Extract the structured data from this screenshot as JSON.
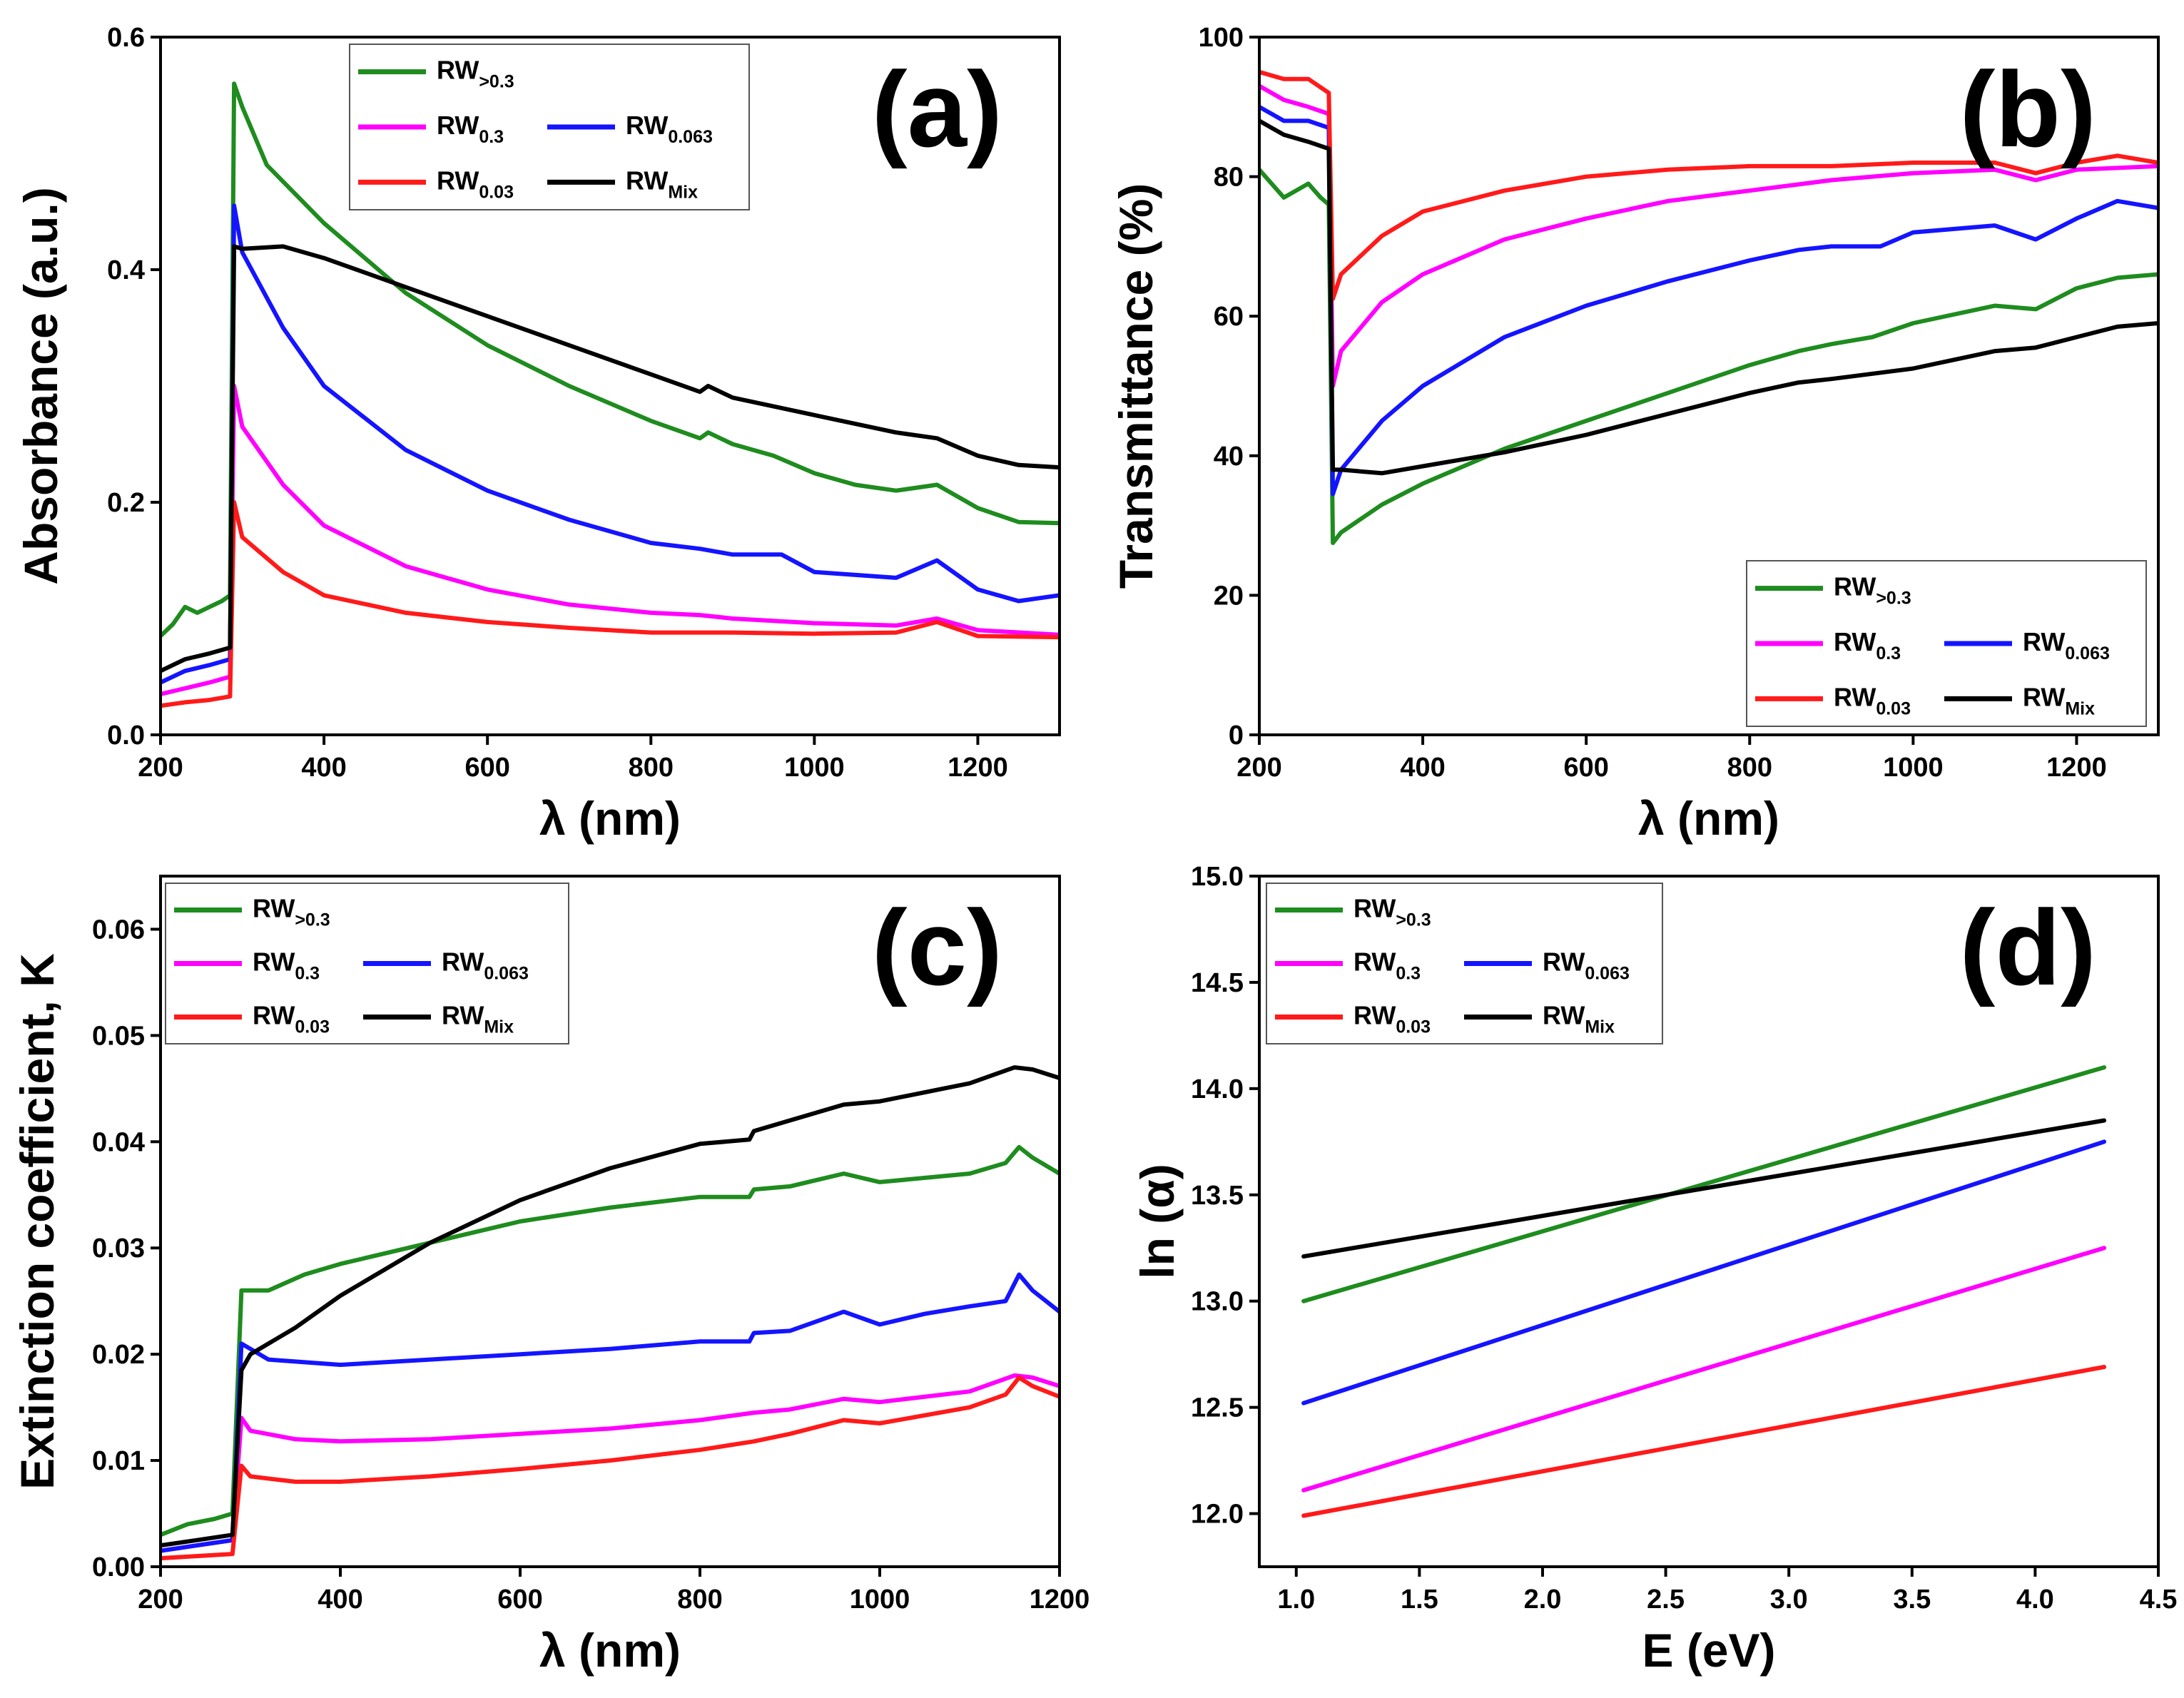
{
  "figure": {
    "panels_order": [
      "a",
      "b",
      "c",
      "d"
    ]
  },
  "chart_data": [
    {
      "id": "a",
      "type": "line",
      "panel_label": "(a)",
      "xlabel": "λ (nm)",
      "ylabel": "Absorbance (a.u.)",
      "xlim": [
        200,
        1300
      ],
      "ylim": [
        0,
        0.6
      ],
      "xticks": [
        200,
        400,
        600,
        800,
        1000,
        1200
      ],
      "yticks": [
        0.0,
        0.2,
        0.4,
        0.6
      ],
      "ytick_labels": [
        "0.0",
        "0.2",
        "0.4",
        "0.6"
      ],
      "legend": {
        "placement": "top-center",
        "rows": [
          [
            "RW>0.3"
          ],
          [
            "RW0.3",
            "RW0.063"
          ],
          [
            "RW0.03",
            "RWMix"
          ]
        ]
      },
      "series": [
        {
          "name": "RW>0.3",
          "base": "RW",
          "sub": ">0.3",
          "color": "#1e8c1e",
          "x": [
            200,
            215,
            230,
            245,
            260,
            275,
            285,
            290,
            300,
            330,
            400,
            500,
            600,
            700,
            800,
            860,
            870,
            900,
            950,
            1000,
            1050,
            1100,
            1150,
            1200,
            1250,
            1300
          ],
          "y": [
            0.085,
            0.095,
            0.11,
            0.105,
            0.11,
            0.115,
            0.12,
            0.56,
            0.54,
            0.49,
            0.44,
            0.38,
            0.335,
            0.3,
            0.27,
            0.255,
            0.26,
            0.25,
            0.24,
            0.225,
            0.215,
            0.21,
            0.215,
            0.195,
            0.183,
            0.182
          ]
        },
        {
          "name": "RW0.3",
          "base": "RW",
          "sub": "0.3",
          "color": "#ff00ff",
          "x": [
            200,
            230,
            260,
            285,
            290,
            300,
            350,
            400,
            500,
            600,
            700,
            800,
            860,
            900,
            1000,
            1100,
            1150,
            1200,
            1300
          ],
          "y": [
            0.035,
            0.04,
            0.045,
            0.05,
            0.3,
            0.265,
            0.215,
            0.18,
            0.145,
            0.125,
            0.112,
            0.105,
            0.103,
            0.1,
            0.096,
            0.094,
            0.1,
            0.09,
            0.086
          ]
        },
        {
          "name": "RW0.063",
          "base": "RW",
          "sub": "0.063",
          "color": "#1414ff",
          "x": [
            200,
            230,
            260,
            285,
            290,
            300,
            350,
            400,
            500,
            600,
            700,
            800,
            860,
            900,
            960,
            1000,
            1100,
            1150,
            1200,
            1250,
            1300
          ],
          "y": [
            0.045,
            0.055,
            0.06,
            0.065,
            0.455,
            0.415,
            0.35,
            0.3,
            0.245,
            0.21,
            0.185,
            0.165,
            0.16,
            0.155,
            0.155,
            0.14,
            0.135,
            0.15,
            0.125,
            0.115,
            0.12
          ]
        },
        {
          "name": "RW0.03",
          "base": "RW",
          "sub": "0.03",
          "color": "#ff1a1a",
          "x": [
            200,
            230,
            260,
            285,
            290,
            300,
            350,
            400,
            500,
            600,
            700,
            800,
            900,
            1000,
            1100,
            1150,
            1200,
            1300
          ],
          "y": [
            0.025,
            0.028,
            0.03,
            0.033,
            0.2,
            0.17,
            0.14,
            0.12,
            0.105,
            0.097,
            0.092,
            0.088,
            0.088,
            0.087,
            0.088,
            0.097,
            0.085,
            0.084
          ]
        },
        {
          "name": "RWMix",
          "base": "RW",
          "sub": "Mix",
          "color": "#000000",
          "x": [
            200,
            230,
            260,
            285,
            290,
            300,
            350,
            400,
            500,
            600,
            700,
            800,
            860,
            870,
            900,
            1000,
            1100,
            1150,
            1200,
            1250,
            1300
          ],
          "y": [
            0.055,
            0.065,
            0.07,
            0.075,
            0.42,
            0.418,
            0.42,
            0.41,
            0.385,
            0.36,
            0.335,
            0.31,
            0.295,
            0.3,
            0.29,
            0.275,
            0.26,
            0.255,
            0.24,
            0.232,
            0.23
          ]
        }
      ]
    },
    {
      "id": "b",
      "type": "line",
      "panel_label": "(b)",
      "xlabel": "λ (nm)",
      "ylabel": "Transmittance (%)",
      "xlim": [
        200,
        1300
      ],
      "ylim": [
        0,
        100
      ],
      "xticks": [
        200,
        400,
        600,
        800,
        1000,
        1200
      ],
      "yticks": [
        0,
        20,
        40,
        60,
        80,
        100
      ],
      "ytick_labels": [
        "0",
        "20",
        "40",
        "60",
        "80",
        "100"
      ],
      "legend": {
        "placement": "bottom-right",
        "rows": [
          [
            "RW>0.3"
          ],
          [
            "RW0.3",
            "RW0.063"
          ],
          [
            "RW0.03",
            "RWMix"
          ]
        ]
      },
      "series": [
        {
          "name": "RW>0.3",
          "base": "RW",
          "sub": ">0.3",
          "color": "#1e8c1e",
          "x": [
            200,
            215,
            230,
            245,
            260,
            275,
            285,
            290,
            300,
            350,
            400,
            500,
            600,
            700,
            800,
            860,
            900,
            950,
            1000,
            1100,
            1150,
            1200,
            1250,
            1300
          ],
          "y": [
            81,
            79,
            77,
            78,
            79,
            77,
            76,
            27.5,
            29,
            33,
            36,
            41,
            45,
            49,
            53,
            55,
            56,
            57,
            59,
            61.5,
            61,
            64,
            65.5,
            66
          ]
        },
        {
          "name": "RW0.3",
          "base": "RW",
          "sub": "0.3",
          "color": "#ff00ff",
          "x": [
            200,
            230,
            260,
            285,
            290,
            300,
            350,
            400,
            500,
            600,
            700,
            800,
            900,
            1000,
            1100,
            1150,
            1200,
            1300
          ],
          "y": [
            93,
            91,
            90,
            89,
            50,
            55,
            62,
            66,
            71,
            74,
            76.5,
            78,
            79.5,
            80.5,
            81,
            79.5,
            81,
            81.5
          ]
        },
        {
          "name": "RW0.063",
          "base": "RW",
          "sub": "0.063",
          "color": "#1414ff",
          "x": [
            200,
            230,
            260,
            285,
            290,
            300,
            350,
            400,
            500,
            600,
            700,
            800,
            860,
            900,
            960,
            1000,
            1100,
            1150,
            1200,
            1250,
            1300
          ],
          "y": [
            90,
            88,
            88,
            87,
            34.5,
            38,
            45,
            50,
            57,
            61.5,
            65,
            68,
            69.5,
            70,
            70,
            72,
            73,
            71,
            74,
            76.5,
            75.5
          ]
        },
        {
          "name": "RW0.03",
          "base": "RW",
          "sub": "0.03",
          "color": "#ff1a1a",
          "x": [
            200,
            230,
            260,
            285,
            290,
            300,
            350,
            400,
            500,
            600,
            700,
            800,
            900,
            1000,
            1100,
            1150,
            1200,
            1250,
            1300
          ],
          "y": [
            95,
            94,
            94,
            92,
            62.5,
            66,
            71.5,
            75,
            78,
            80,
            81,
            81.5,
            81.5,
            82,
            82,
            80.5,
            82,
            83,
            82
          ]
        },
        {
          "name": "RWMix",
          "base": "RW",
          "sub": "Mix",
          "color": "#000000",
          "x": [
            200,
            230,
            260,
            285,
            290,
            300,
            350,
            400,
            500,
            600,
            700,
            800,
            860,
            900,
            1000,
            1100,
            1150,
            1200,
            1250,
            1300
          ],
          "y": [
            88,
            86,
            85,
            84,
            38,
            38,
            37.5,
            38.5,
            40.5,
            43,
            46,
            49,
            50.5,
            51,
            52.5,
            55,
            55.5,
            57,
            58.5,
            59
          ]
        }
      ]
    },
    {
      "id": "c",
      "type": "line",
      "panel_label": "(c)",
      "xlabel": "λ (nm)",
      "ylabel": "Extinction coefficient, K",
      "xlim": [
        200,
        1200
      ],
      "ylim": [
        0,
        0.065
      ],
      "xticks": [
        200,
        400,
        600,
        800,
        1000,
        1200
      ],
      "yticks": [
        0.0,
        0.01,
        0.02,
        0.03,
        0.04,
        0.05,
        0.06
      ],
      "ytick_labels": [
        "0.00",
        "0.01",
        "0.02",
        "0.03",
        "0.04",
        "0.05",
        "0.06"
      ],
      "legend": {
        "placement": "top-left",
        "rows": [
          [
            "RW>0.3"
          ],
          [
            "RW0.3",
            "RW0.063"
          ],
          [
            "RW0.03",
            "RWMix"
          ]
        ]
      },
      "series": [
        {
          "name": "RW>0.3",
          "base": "RW",
          "sub": ">0.3",
          "color": "#1e8c1e",
          "x": [
            200,
            230,
            260,
            280,
            290,
            300,
            320,
            360,
            400,
            500,
            600,
            700,
            800,
            855,
            860,
            900,
            960,
            1000,
            1100,
            1140,
            1155,
            1170,
            1200
          ],
          "y": [
            0.003,
            0.004,
            0.0045,
            0.005,
            0.026,
            0.026,
            0.026,
            0.0275,
            0.0285,
            0.0305,
            0.0325,
            0.0338,
            0.0348,
            0.0348,
            0.0355,
            0.0358,
            0.037,
            0.0362,
            0.037,
            0.038,
            0.0395,
            0.0385,
            0.037
          ]
        },
        {
          "name": "RW0.3",
          "base": "RW",
          "sub": "0.3",
          "color": "#ff00ff",
          "x": [
            200,
            240,
            280,
            290,
            300,
            350,
            400,
            500,
            600,
            700,
            800,
            860,
            900,
            960,
            1000,
            1100,
            1150,
            1170,
            1200
          ],
          "y": [
            0.0015,
            0.002,
            0.0025,
            0.014,
            0.0128,
            0.012,
            0.0118,
            0.012,
            0.0125,
            0.013,
            0.0138,
            0.0145,
            0.0148,
            0.0158,
            0.0155,
            0.0165,
            0.018,
            0.0178,
            0.017
          ]
        },
        {
          "name": "RW0.063",
          "base": "RW",
          "sub": "0.063",
          "color": "#1414ff",
          "x": [
            200,
            240,
            280,
            290,
            300,
            320,
            400,
            500,
            600,
            700,
            800,
            855,
            860,
            900,
            960,
            1000,
            1050,
            1100,
            1140,
            1155,
            1170,
            1200
          ],
          "y": [
            0.0015,
            0.002,
            0.0025,
            0.021,
            0.0205,
            0.0195,
            0.019,
            0.0195,
            0.02,
            0.0205,
            0.0212,
            0.0212,
            0.022,
            0.0222,
            0.024,
            0.0228,
            0.0238,
            0.0245,
            0.025,
            0.0275,
            0.026,
            0.024
          ]
        },
        {
          "name": "RW0.03",
          "base": "RW",
          "sub": "0.03",
          "color": "#ff1a1a",
          "x": [
            200,
            240,
            280,
            290,
            300,
            350,
            400,
            500,
            600,
            700,
            800,
            860,
            900,
            960,
            1000,
            1100,
            1140,
            1155,
            1170,
            1200
          ],
          "y": [
            0.0008,
            0.001,
            0.0012,
            0.0095,
            0.0085,
            0.008,
            0.008,
            0.0085,
            0.0092,
            0.01,
            0.011,
            0.0118,
            0.0125,
            0.0138,
            0.0135,
            0.015,
            0.0162,
            0.0178,
            0.017,
            0.016
          ]
        },
        {
          "name": "RWMix",
          "base": "RW",
          "sub": "Mix",
          "color": "#000000",
          "x": [
            200,
            240,
            280,
            290,
            300,
            350,
            400,
            500,
            600,
            700,
            800,
            855,
            860,
            900,
            960,
            1000,
            1100,
            1150,
            1170,
            1200
          ],
          "y": [
            0.002,
            0.0025,
            0.003,
            0.0185,
            0.02,
            0.0225,
            0.0255,
            0.0305,
            0.0345,
            0.0375,
            0.0398,
            0.0402,
            0.041,
            0.042,
            0.0435,
            0.0438,
            0.0455,
            0.047,
            0.0468,
            0.046
          ]
        }
      ]
    },
    {
      "id": "d",
      "type": "line",
      "panel_label": "(d)",
      "xlabel": "E (eV)",
      "ylabel": "ln (α)",
      "xlim": [
        0.85,
        4.5
      ],
      "ylim": [
        11.75,
        15.0
      ],
      "xticks": [
        1.0,
        1.5,
        2.0,
        2.5,
        3.0,
        3.5,
        4.0,
        4.5
      ],
      "xtick_labels": [
        "1.0",
        "1.5",
        "2.0",
        "2.5",
        "3.0",
        "3.5",
        "4.0",
        "4.5"
      ],
      "yticks": [
        12.0,
        12.5,
        13.0,
        13.5,
        14.0,
        14.5,
        15.0
      ],
      "ytick_labels": [
        "12.0",
        "12.5",
        "13.0",
        "13.5",
        "14.0",
        "14.5",
        "15.0"
      ],
      "legend": {
        "placement": "top-left",
        "rows": [
          [
            "RW>0.3"
          ],
          [
            "RW0.3",
            "RW0.063"
          ],
          [
            "RW0.03",
            "RWMix"
          ]
        ]
      },
      "series": [
        {
          "name": "RW>0.3",
          "base": "RW",
          "sub": ">0.3",
          "color": "#1e8c1e",
          "x": [
            1.03,
            4.28
          ],
          "y": [
            13.0,
            14.1
          ]
        },
        {
          "name": "RW0.3",
          "base": "RW",
          "sub": "0.3",
          "color": "#ff00ff",
          "x": [
            1.03,
            4.28
          ],
          "y": [
            12.11,
            13.25
          ]
        },
        {
          "name": "RW0.063",
          "base": "RW",
          "sub": "0.063",
          "color": "#1414ff",
          "x": [
            1.03,
            4.28
          ],
          "y": [
            12.52,
            13.75
          ]
        },
        {
          "name": "RW0.03",
          "base": "RW",
          "sub": "0.03",
          "color": "#ff1a1a",
          "x": [
            1.03,
            4.28
          ],
          "y": [
            11.99,
            12.69
          ]
        },
        {
          "name": "RWMix",
          "base": "RW",
          "sub": "Mix",
          "color": "#000000",
          "x": [
            1.03,
            4.28
          ],
          "y": [
            13.21,
            13.85
          ]
        }
      ]
    }
  ]
}
